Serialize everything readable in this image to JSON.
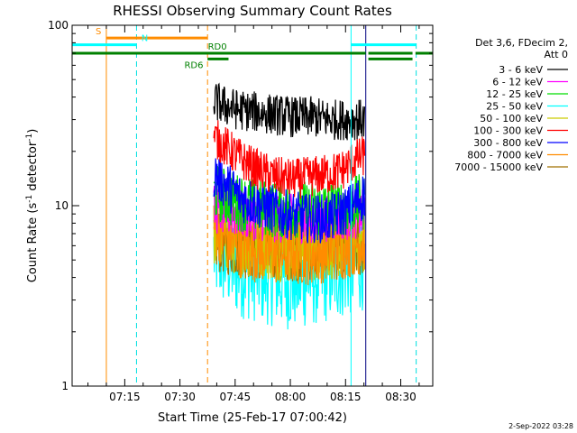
{
  "chart_data": {
    "type": "line",
    "title": "RHESSI Observing Summary Count Rates",
    "xlabel": "Start Time (25-Feb-17 07:00:42)",
    "ylabel_main": "Count Rate (s",
    "ylabel_sup1": "-1",
    "ylabel_mid": " detector",
    "ylabel_sup2": "-1",
    "ylabel_end": ")",
    "yscale": "log",
    "ylim": [
      1,
      100
    ],
    "xlim_minutes": [
      0,
      98
    ],
    "y_ticks": [
      {
        "value": 100,
        "label": "100"
      },
      {
        "value": 10,
        "label": "10"
      },
      {
        "value": 1,
        "label": "1"
      }
    ],
    "x_ticks": [
      {
        "minute": 14.3,
        "label": "07:15"
      },
      {
        "minute": 29.3,
        "label": "07:30"
      },
      {
        "minute": 44.3,
        "label": "07:45"
      },
      {
        "minute": 59.3,
        "label": "08:00"
      },
      {
        "minute": 74.3,
        "label": "08:15"
      },
      {
        "minute": 89.3,
        "label": "08:30"
      }
    ],
    "legend": {
      "header": [
        "Det 3,6, FDecim 2,",
        "Att 0"
      ],
      "position": "top-right",
      "entries": [
        {
          "label": "3 - 6 keV",
          "color": "#000000"
        },
        {
          "label": "6 - 12 keV",
          "color": "#ff00ff"
        },
        {
          "label": "12 - 25 keV",
          "color": "#00dd00"
        },
        {
          "label": "25 - 50 keV",
          "color": "#00ffff"
        },
        {
          "label": "50 - 100 keV",
          "color": "#cccc00"
        },
        {
          "label": "100 - 300 keV",
          "color": "#ff0000"
        },
        {
          "label": "300 - 800 keV",
          "color": "#0000ff"
        },
        {
          "label": "800 - 7000 keV",
          "color": "#ff8c00"
        },
        {
          "label": "7000 - 15000 keV",
          "color": "#a07000"
        }
      ]
    },
    "data_window_minutes": [
      38.5,
      79.5
    ],
    "series": [
      {
        "name": "3 - 6 keV",
        "color": "#000000",
        "x": [
          38.5,
          41,
          45,
          50,
          55,
          60,
          65,
          70,
          75,
          79.5
        ],
        "y": [
          38,
          36,
          34,
          33,
          32,
          31,
          31,
          30,
          30,
          30
        ],
        "jitter": 0.05
      },
      {
        "name": "6 - 12 keV",
        "color": "#ff00ff",
        "x": [
          38.5,
          45,
          55,
          65,
          79.5
        ],
        "y": [
          9.5,
          9,
          8.5,
          8.5,
          9
        ],
        "jitter": 0.06
      },
      {
        "name": "12 - 25 keV",
        "color": "#00dd00",
        "x": [
          38.5,
          45,
          55,
          65,
          75,
          79.5
        ],
        "y": [
          12,
          10.5,
          9.5,
          9.5,
          10,
          10.5
        ],
        "jitter": 0.07
      },
      {
        "name": "25 - 50 keV",
        "color": "#00ffff",
        "x": [
          38.5,
          45,
          55,
          60,
          65,
          75,
          79.5
        ],
        "y": [
          5.5,
          4.5,
          4,
          3.8,
          4,
          4.5,
          5
        ],
        "jitter": 0.12
      },
      {
        "name": "50 - 100 keV",
        "color": "#cccc00",
        "x": [
          38.5,
          45,
          55,
          65,
          75,
          79.5
        ],
        "y": [
          7,
          6.2,
          5.8,
          5.8,
          6,
          6.3
        ],
        "jitter": 0.08
      },
      {
        "name": "100 - 300 keV",
        "color": "#ff0000",
        "x": [
          38.5,
          42,
          46,
          50,
          55,
          60,
          65,
          70,
          74,
          77,
          79.5
        ],
        "y": [
          24,
          21,
          18,
          16,
          14.5,
          14,
          14.5,
          15,
          16,
          18,
          19
        ],
        "jitter": 0.05
      },
      {
        "name": "300 - 800 keV",
        "color": "#0000ff",
        "x": [
          38.5,
          42,
          46,
          52,
          58,
          64,
          70,
          75,
          79.5
        ],
        "y": [
          15,
          13,
          11,
          10,
          9,
          8.5,
          8.5,
          9.5,
          11.5
        ],
        "jitter": 0.06
      },
      {
        "name": "800 - 7000 keV",
        "color": "#ff8c00",
        "x": [
          38.5,
          42,
          48,
          55,
          65,
          75,
          79.5
        ],
        "y": [
          8,
          6.5,
          5.8,
          5.5,
          5.5,
          6,
          6.5
        ],
        "jitter": 0.08
      },
      {
        "name": "7000 - 15000 keV",
        "color": "#a07000",
        "x": [
          38.5,
          45,
          55,
          65,
          79.5
        ],
        "y": [
          6.5,
          6,
          5.8,
          5.8,
          6
        ],
        "jitter": 0.08
      }
    ],
    "vertical_markers": [
      {
        "minute": 9.3,
        "color": "#ff8c00",
        "style": "solid"
      },
      {
        "minute": 17.5,
        "color": "#00e0e0",
        "style": "dashed"
      },
      {
        "minute": 36.8,
        "color": "#ff8c00",
        "style": "dashed"
      },
      {
        "minute": 75.8,
        "color": "#00ffff",
        "style": "solid"
      },
      {
        "minute": 79.8,
        "color": "#000080",
        "style": "solid"
      },
      {
        "minute": 93.5,
        "color": "#00e0e0",
        "style": "dashed"
      }
    ],
    "flag_bars": [
      {
        "label": "S",
        "color": "#ff8c00",
        "segments": [
          [
            9.3,
            36.8
          ]
        ],
        "y": 85
      },
      {
        "label": "N",
        "color": "#00ffff",
        "segments": [
          [
            0,
            17.5
          ],
          [
            75.8,
            93.5
          ]
        ],
        "y": 78
      },
      {
        "label": "RD0",
        "color": "#008000",
        "segments": [
          [
            0,
            79.8
          ],
          [
            80.5,
            92.5
          ],
          [
            93.3,
            98
          ]
        ],
        "y": 70
      },
      {
        "label": "RD6",
        "color": "#008000",
        "segments": [
          [
            36.8,
            42.5
          ],
          [
            80.5,
            92.5
          ]
        ],
        "y": 65
      }
    ],
    "footer_date": "2-Sep-2022 03:28"
  }
}
